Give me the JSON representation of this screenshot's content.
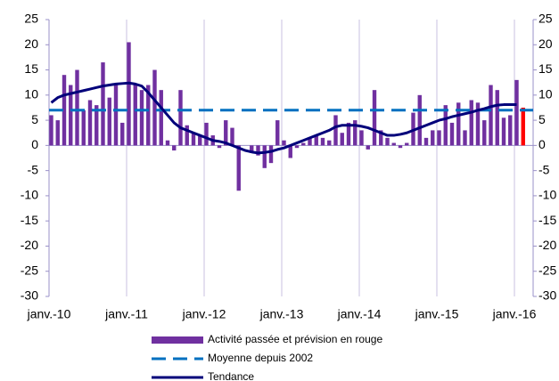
{
  "chart_data": {
    "type": "bar",
    "categories": [
      "janv.-10",
      null,
      null,
      null,
      null,
      null,
      null,
      null,
      null,
      null,
      null,
      null,
      "janv.-11",
      null,
      null,
      null,
      null,
      null,
      null,
      null,
      null,
      null,
      null,
      null,
      "janv.-12",
      null,
      null,
      null,
      null,
      null,
      null,
      null,
      null,
      null,
      null,
      null,
      "janv.-13",
      null,
      null,
      null,
      null,
      null,
      null,
      null,
      null,
      null,
      null,
      null,
      "janv.-14",
      null,
      null,
      null,
      null,
      null,
      null,
      null,
      null,
      null,
      null,
      null,
      "janv.-15",
      null,
      null,
      null,
      null,
      null,
      null,
      null,
      null,
      null,
      null,
      null,
      "janv.-16",
      null
    ],
    "series": [
      {
        "name": "Activité passée et prévision en rouge",
        "color": "#7030a0",
        "forecast_color": "#ff0000",
        "values": [
          6,
          5,
          14,
          12,
          15,
          7,
          9,
          8,
          16.5,
          9.5,
          12,
          4.5,
          20.5,
          12,
          11,
          12,
          15,
          11,
          1,
          -1,
          11,
          4,
          2.5,
          2,
          4.5,
          2,
          -0.5,
          5,
          3.5,
          -9,
          0,
          -1.5,
          -2,
          -4.5,
          -3.5,
          5,
          1,
          -2.5,
          -0.5,
          0.5,
          1.5,
          2,
          1.5,
          1,
          6,
          2.5,
          4.5,
          5,
          3,
          -0.8,
          11,
          3,
          1.5,
          0.5,
          -0.5,
          0.5,
          6.5,
          10,
          1.5,
          3,
          3,
          8,
          4.5,
          8.5,
          3,
          9,
          8.5,
          5,
          12,
          11,
          5.5,
          6,
          13,
          7.5
        ]
      },
      {
        "name": "Moyenne depuis 2002",
        "color": "#0070c0",
        "value": 7
      },
      {
        "name": "Tendance",
        "color": "#00007a",
        "values": [
          8.5,
          9.5,
          10,
          10.3,
          10.6,
          10.9,
          11.2,
          11.5,
          11.8,
          12,
          12.2,
          12.3,
          12.4,
          12.2,
          11.8,
          10.5,
          9,
          7.5,
          6,
          4.5,
          3.5,
          3,
          2.5,
          2,
          1.5,
          1,
          0.8,
          0.5,
          0,
          -0.5,
          -1,
          -1.3,
          -1.5,
          -1.4,
          -1.2,
          -0.8,
          -0.5,
          0,
          0.5,
          1,
          1.5,
          2,
          2.5,
          3,
          3.7,
          4,
          4,
          4,
          3.8,
          3.5,
          3,
          2.5,
          2,
          2,
          2.2,
          2.5,
          3,
          3.5,
          4,
          4.5,
          5,
          5.3,
          5.7,
          6,
          6.3,
          6.6,
          7,
          7.3,
          7.7,
          8,
          8.1,
          8.1,
          8.1,
          null
        ]
      }
    ],
    "ylim": [
      -30,
      25
    ],
    "yticks": [
      -30,
      -25,
      -20,
      -15,
      -10,
      -5,
      0,
      5,
      10,
      15,
      20,
      25
    ],
    "y2lim": [
      -30,
      25
    ],
    "y2ticks": [
      -30,
      -25,
      -20,
      -15,
      -10,
      -5,
      0,
      5,
      10,
      15,
      20,
      25
    ],
    "grid": true
  }
}
